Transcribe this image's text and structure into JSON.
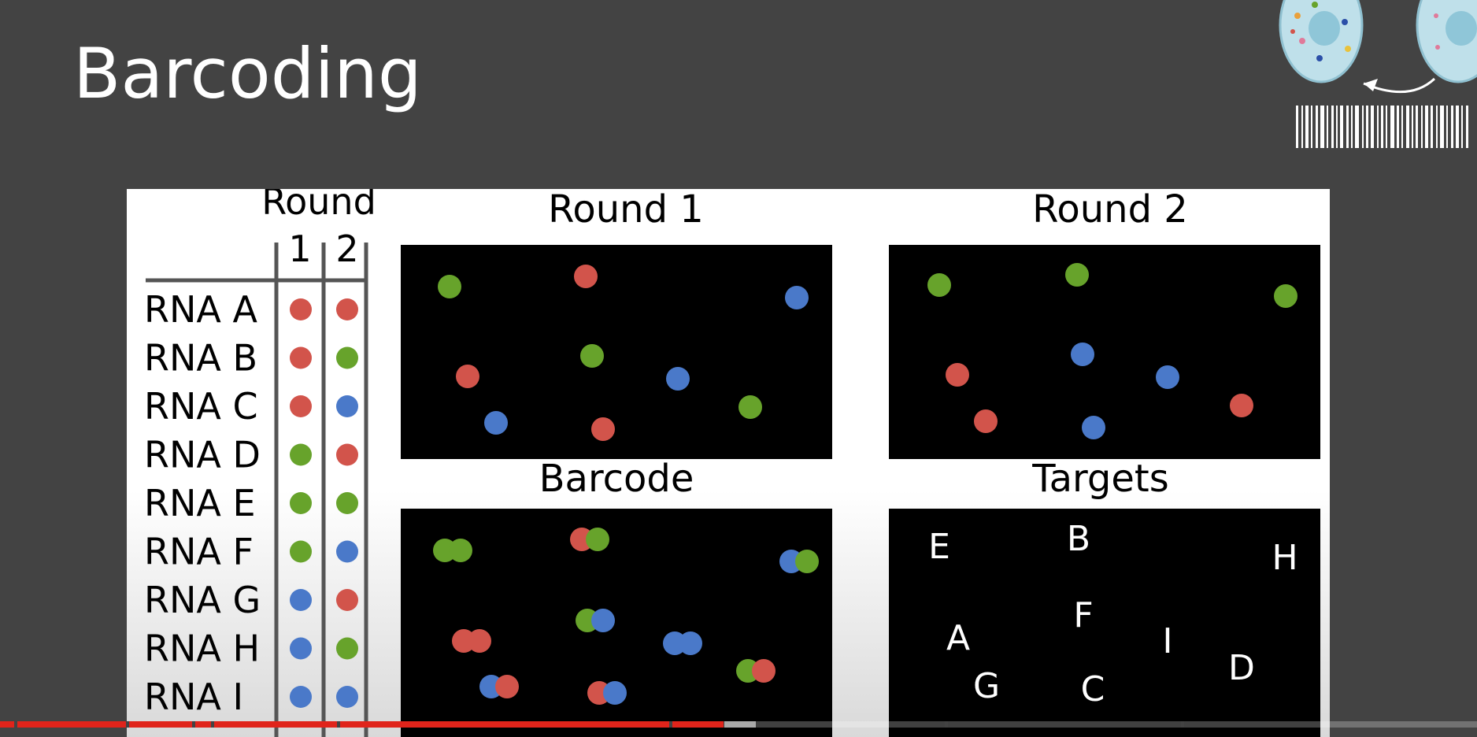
{
  "slide": {
    "title": "Barcoding"
  },
  "colors": {
    "red": "#d2544b",
    "green": "#67a32b",
    "blue": "#4a79c9",
    "background": "#434343",
    "panel": "#ffffff",
    "image_bg": "#000000",
    "progress": "#e0241b"
  },
  "icons": {
    "corner": "cell-barcode-illustration"
  },
  "table": {
    "header": "Round",
    "round_labels": [
      "1",
      "2"
    ],
    "rows": [
      {
        "label": "RNA A",
        "round1": "red",
        "round2": "red"
      },
      {
        "label": "RNA B",
        "round1": "red",
        "round2": "green"
      },
      {
        "label": "RNA C",
        "round1": "red",
        "round2": "blue"
      },
      {
        "label": "RNA D",
        "round1": "green",
        "round2": "red"
      },
      {
        "label": "RNA E",
        "round1": "green",
        "round2": "green"
      },
      {
        "label": "RNA F",
        "round1": "green",
        "round2": "blue"
      },
      {
        "label": "RNA G",
        "round1": "blue",
        "round2": "red"
      },
      {
        "label": "RNA H",
        "round1": "blue",
        "round2": "green"
      },
      {
        "label": "RNA I",
        "round1": "blue",
        "round2": "blue"
      }
    ]
  },
  "panels": {
    "round1": {
      "title": "Round 1"
    },
    "round2": {
      "title": "Round 2"
    },
    "barcode": {
      "title": "Barcode"
    },
    "targets": {
      "title": "Targets"
    }
  },
  "targets": [
    "E",
    "B",
    "H",
    "A",
    "F",
    "I",
    "D",
    "G",
    "C"
  ],
  "video": {
    "progress_fraction": 0.49
  }
}
